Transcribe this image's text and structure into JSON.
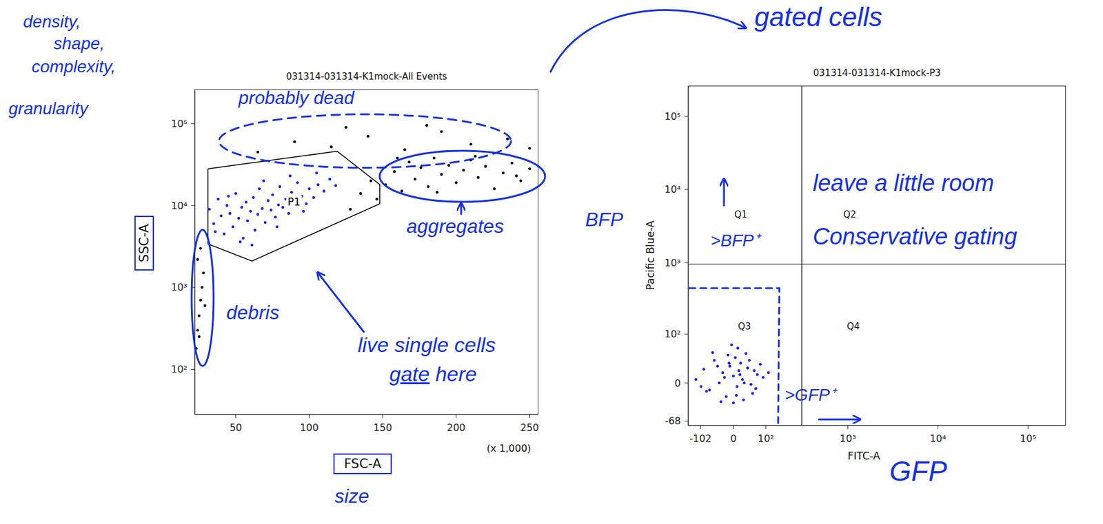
{
  "chart_data": [
    {
      "type": "scatter",
      "title": "031314-031314-K1mock-All Events",
      "x_label": "FSC-A",
      "x_unit": "(x 1,000)",
      "y_label": "SSC-A",
      "xlim": [
        22,
        256
      ],
      "xticks": [
        50,
        100,
        150,
        200,
        250
      ],
      "ylim": [
        28,
        262144
      ],
      "yticks": [
        {
          "value": 100,
          "label": "10²"
        },
        {
          "value": 1000,
          "label": "10³"
        },
        {
          "value": 10000,
          "label": "10⁴"
        },
        {
          "value": 100000,
          "label": "10⁵"
        }
      ],
      "log": "y",
      "grid": false,
      "series": [
        {
          "color": "#1a1aff",
          "x": [
            32,
            35,
            38,
            40,
            42,
            44,
            46,
            48,
            50,
            52,
            54,
            55,
            57,
            58,
            60,
            62,
            63,
            65,
            66,
            68,
            70,
            72,
            74,
            75,
            77,
            79,
            80,
            82,
            84,
            86,
            88,
            90,
            92,
            95,
            98,
            100,
            103,
            106,
            110,
            114,
            118,
            36,
            45,
            53,
            61,
            69,
            78,
            87,
            96,
            105
          ],
          "y": [
            9000,
            6000,
            12000,
            7500,
            4500,
            10000,
            8000,
            5500,
            14000,
            7000,
            9500,
            4000,
            11000,
            6500,
            8500,
            12500,
            5000,
            7800,
            16000,
            9200,
            6200,
            11500,
            8800,
            13500,
            7200,
            10200,
            17000,
            9500,
            12000,
            8000,
            14500,
            11000,
            19000,
            13000,
            10500,
            16000,
            12500,
            18000,
            15000,
            21000,
            17500,
            4800,
            13000,
            3600,
            3300,
            20000,
            5500,
            23000,
            8500,
            25000
          ]
        },
        {
          "color": "#000000",
          "x": [
            152,
            158,
            163,
            168,
            172,
            176,
            181,
            185,
            190,
            195,
            200,
            205,
            210,
            215,
            220,
            226,
            232,
            238,
            244,
            250,
            160,
            187,
            213,
            241,
            65,
            90,
            115,
            140,
            165,
            190,
            210,
            235,
            250,
            125,
            180,
            23,
            24,
            25,
            26,
            27,
            28,
            24,
            26,
            29,
            25,
            128,
            135,
            142,
            146
          ],
          "y": [
            18000,
            26000,
            15000,
            34000,
            21000,
            29000,
            17000,
            38000,
            24000,
            31000,
            19000,
            27000,
            36000,
            22000,
            30000,
            16000,
            25000,
            33000,
            20000,
            28000,
            38000,
            14500,
            40000,
            23000,
            45000,
            60000,
            52000,
            70000,
            48000,
            80000,
            56000,
            65000,
            50000,
            90000,
            95000,
            180,
            300,
            450,
            700,
            1000,
            1500,
            2200,
            3000,
            600,
            250,
            9000,
            14000,
            20000,
            12000
          ]
        }
      ],
      "gate": {
        "label": "P1",
        "x": [
          31,
          119,
          148,
          148,
          61,
          31
        ],
        "y": [
          28000,
          46000,
          18000,
          10500,
          2100,
          3400
        ]
      },
      "annotations": {
        "y_axis_note": [
          "density,",
          "shape,",
          "complexity,",
          "granularity"
        ],
        "dead_region": "probably dead",
        "aggregates": "aggregates",
        "debris": "debris",
        "live_cells": "live single cells",
        "gate_note": "gate here",
        "x_axis_note": "size"
      }
    },
    {
      "type": "scatter",
      "title": "031314-031314-K1mock-P3",
      "x_label": "FITC-A",
      "y_label": "Pacific Blue-A",
      "xlim": [
        -155,
        262144
      ],
      "xticks": [
        -102,
        0,
        {
          "value": 100,
          "label": "10²"
        },
        {
          "value": 1000,
          "label": "10³"
        },
        {
          "value": 10000,
          "label": "10⁴"
        },
        {
          "value": 100000,
          "label": "10⁵"
        }
      ],
      "ylim": [
        -80,
        262144
      ],
      "yticks": [
        -68,
        0,
        {
          "value": 100,
          "label": "10²"
        },
        {
          "value": 1000,
          "label": "10³"
        },
        {
          "value": 10000,
          "label": "10⁴"
        },
        {
          "value": 100000,
          "label": "10⁵"
        }
      ],
      "log": true,
      "grid": false,
      "series": [
        {
          "color": "#1a1aff",
          "x": [
            -120,
            -90,
            -70,
            -55,
            -40,
            -30,
            -20,
            -10,
            0,
            5,
            10,
            15,
            20,
            30,
            40,
            55,
            70,
            90,
            110,
            -60,
            -35,
            -15,
            0,
            12,
            25,
            45,
            65,
            -80,
            -25,
            8,
            35,
            -45,
            18,
            -5,
            50,
            80,
            -100,
            28,
            -12,
            60
          ],
          "y": [
            5,
            20,
            -10,
            35,
            0,
            15,
            -20,
            25,
            10,
            40,
            -5,
            18,
            30,
            0,
            22,
            -15,
            12,
            8,
            15,
            50,
            -28,
            45,
            -30,
            60,
            5,
            35,
            -8,
            -12,
            8,
            -18,
            48,
            25,
            12,
            68,
            -2,
            28,
            -5,
            -25,
            30,
            18
          ]
        }
      ],
      "quadrant_x": 300,
      "quadrant_y": 950,
      "quadrant_labels": [
        "Q1",
        "Q2",
        "Q3",
        "Q4"
      ],
      "annotations": {
        "from_left": "gated cells",
        "y_axis_note": "BFP",
        "x_axis_note": "GFP",
        "bfp_positive": ">BFP⁺",
        "gfp_positive": ">GFP⁺",
        "advice": [
          "leave a little room",
          "Conservative gating"
        ]
      }
    }
  ]
}
